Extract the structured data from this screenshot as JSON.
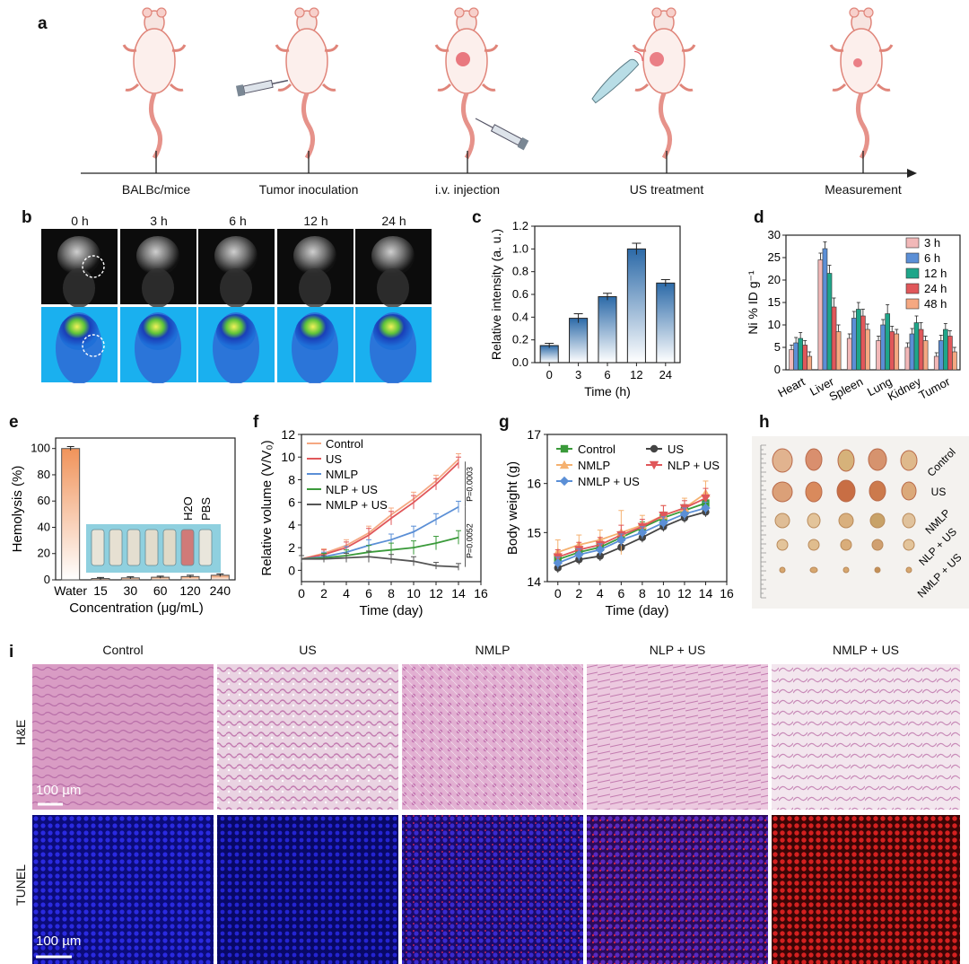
{
  "panel_labels": {
    "a": "a",
    "b": "b",
    "c": "c",
    "d": "d",
    "e": "e",
    "f": "f",
    "g": "g",
    "h": "h",
    "i": "i"
  },
  "timeline": {
    "steps": [
      "BALBc/mice",
      "Tumor inoculation",
      "i.v. injection",
      "US treatment",
      "Measurement"
    ]
  },
  "imaging": {
    "times": [
      "0 h",
      "3 h",
      "6 h",
      "12 h",
      "24 h"
    ]
  },
  "tumor_photo": {
    "labels": [
      "Control",
      "US",
      "NMLP",
      "NLP + US",
      "NMLP + US"
    ]
  },
  "histology": {
    "columns": [
      "Control",
      "US",
      "NMLP",
      "NLP + US",
      "NMLP + US"
    ],
    "rows": [
      "H&E",
      "TUNEL"
    ],
    "scale_bar": "100 µm"
  },
  "hemolysis_inset": {
    "h2o": "H2O",
    "pbs": "PBS"
  },
  "chart_data": [
    {
      "id": "c",
      "type": "bar",
      "categories": [
        "0",
        "3",
        "6",
        "12",
        "24"
      ],
      "values": [
        0.15,
        0.39,
        0.58,
        1.0,
        0.7
      ],
      "errors": [
        0.02,
        0.04,
        0.03,
        0.05,
        0.03
      ],
      "xlabel": "Time (h)",
      "ylabel": "Relative intensity (a. u.)",
      "ylim": [
        0,
        1.2
      ],
      "yticks": [
        "0.0",
        "0.2",
        "0.4",
        "0.6",
        "0.8",
        "1.0",
        "1.2"
      ]
    },
    {
      "id": "d",
      "type": "bar",
      "categories": [
        "Heart",
        "Liver",
        "Spleen",
        "Lung",
        "Kidney",
        "Tumor"
      ],
      "series": [
        {
          "name": "3 h",
          "color": "#f2b8b8",
          "values": [
            4.5,
            24.5,
            7.0,
            6.5,
            5.0,
            3.0
          ],
          "errors": [
            1.0,
            1.5,
            1.0,
            1.0,
            1.0,
            0.8
          ]
        },
        {
          "name": "6 h",
          "color": "#5b8fd6",
          "values": [
            6.0,
            27.0,
            11.5,
            10.0,
            8.0,
            6.5
          ],
          "errors": [
            1.2,
            1.5,
            1.5,
            1.2,
            1.2,
            1.2
          ]
        },
        {
          "name": "12 h",
          "color": "#1fa68a",
          "values": [
            7.0,
            21.5,
            13.5,
            12.5,
            10.5,
            9.0
          ],
          "errors": [
            1.3,
            1.8,
            1.5,
            2.0,
            1.5,
            1.3
          ]
        },
        {
          "name": "24 h",
          "color": "#e0575a",
          "values": [
            5.5,
            14.0,
            12.0,
            8.5,
            9.0,
            7.5
          ],
          "errors": [
            1.0,
            2.0,
            1.5,
            1.2,
            1.5,
            1.2
          ]
        },
        {
          "name": "48 h",
          "color": "#f5a882",
          "values": [
            3.0,
            8.5,
            9.0,
            8.0,
            6.5,
            4.0
          ],
          "errors": [
            1.0,
            1.5,
            1.2,
            1.0,
            1.0,
            1.0
          ]
        }
      ],
      "ylabel": "Ni % ID g⁻¹",
      "ylim": [
        0,
        30
      ],
      "yticks": [
        "0",
        "5",
        "10",
        "15",
        "20",
        "25",
        "30"
      ],
      "legend": "top-right"
    },
    {
      "id": "e",
      "type": "bar",
      "categories": [
        "Water",
        "15",
        "30",
        "60",
        "120",
        "240"
      ],
      "values": [
        100,
        1.0,
        1.5,
        2.0,
        2.5,
        3.5
      ],
      "errors": [
        1.5,
        0.8,
        0.8,
        0.8,
        1.0,
        1.0
      ],
      "xlabel": "Concentration (μg/mL)",
      "ylabel": "Hemolysis (%)",
      "ylim": [
        0,
        100
      ],
      "yticks": [
        "0",
        "20",
        "40",
        "60",
        "80",
        "100"
      ]
    },
    {
      "id": "f",
      "type": "line",
      "x": [
        0,
        2,
        4,
        6,
        8,
        10,
        12,
        14
      ],
      "series": [
        {
          "name": "Control",
          "color": "#f5a882",
          "values": [
            1.0,
            1.5,
            2.2,
            3.3,
            4.9,
            6.3,
            7.9,
            9.8
          ],
          "errors": [
            0.3,
            0.4,
            0.5,
            0.6,
            0.6,
            0.6,
            0.5,
            0.5
          ]
        },
        {
          "name": "US",
          "color": "#e0575a",
          "values": [
            1.0,
            1.4,
            2.0,
            3.1,
            4.6,
            6.0,
            7.6,
            9.5
          ],
          "errors": [
            0.3,
            0.4,
            0.5,
            0.6,
            0.6,
            0.6,
            0.5,
            0.5
          ]
        },
        {
          "name": "NMLP",
          "color": "#5b8fd6",
          "values": [
            1.0,
            1.2,
            1.6,
            2.2,
            2.7,
            3.4,
            4.5,
            5.6
          ],
          "errors": [
            0.3,
            0.4,
            0.5,
            0.5,
            0.5,
            0.5,
            0.5,
            0.5
          ]
        },
        {
          "name": "NLP + US",
          "color": "#3a9a3a",
          "values": [
            1.0,
            1.1,
            1.3,
            1.6,
            1.8,
            2.0,
            2.4,
            2.9
          ],
          "errors": [
            0.3,
            0.4,
            0.5,
            0.6,
            0.6,
            0.6,
            0.6,
            0.6
          ]
        },
        {
          "name": "NMLP + US",
          "color": "#555555",
          "values": [
            1.0,
            1.0,
            1.1,
            1.2,
            1.0,
            0.8,
            0.4,
            0.3
          ],
          "errors": [
            0.3,
            0.3,
            0.4,
            0.5,
            0.4,
            0.4,
            0.3,
            0.3
          ]
        }
      ],
      "xlabel": "Time (day)",
      "ylabel": "Relative volume (V/V₀)",
      "xlim": [
        0,
        16
      ],
      "ylim": [
        -1,
        12
      ],
      "xticks": [
        "0",
        "2",
        "4",
        "6",
        "8",
        "10",
        "12",
        "14",
        "16"
      ],
      "yticks": [
        "0",
        "2",
        "4",
        "6",
        "8",
        "10",
        "12"
      ],
      "annotations": [
        "P=0.0003",
        "P=0.0052"
      ],
      "legend": "top-left"
    },
    {
      "id": "g",
      "type": "line",
      "x": [
        0,
        2,
        4,
        6,
        8,
        10,
        12,
        14
      ],
      "series": [
        {
          "name": "Control",
          "color": "#3a9a3a",
          "marker": "square",
          "values": [
            14.45,
            14.6,
            14.7,
            14.9,
            15.1,
            15.3,
            15.45,
            15.6
          ],
          "errors": [
            0.12,
            0.12,
            0.12,
            0.12,
            0.12,
            0.12,
            0.12,
            0.12
          ]
        },
        {
          "name": "US",
          "color": "#444444",
          "marker": "circle",
          "values": [
            14.28,
            14.45,
            14.52,
            14.7,
            14.9,
            15.12,
            15.3,
            15.42
          ],
          "errors": [
            0.1,
            0.1,
            0.1,
            0.1,
            0.1,
            0.1,
            0.1,
            0.1
          ]
        },
        {
          "name": "NMLP",
          "color": "#f5b170",
          "marker": "triangle-up",
          "values": [
            14.6,
            14.75,
            14.85,
            15.0,
            15.15,
            15.35,
            15.5,
            15.8
          ],
          "errors": [
            0.25,
            0.2,
            0.2,
            0.45,
            0.2,
            0.2,
            0.2,
            0.25
          ]
        },
        {
          "name": "NLP + US",
          "color": "#e0575a",
          "marker": "triangle-down",
          "values": [
            14.5,
            14.65,
            14.75,
            14.95,
            15.12,
            15.35,
            15.5,
            15.7
          ],
          "errors": [
            0.15,
            0.15,
            0.15,
            0.2,
            0.15,
            0.2,
            0.15,
            0.2
          ]
        },
        {
          "name": "NMLP + US",
          "color": "#5b8fd6",
          "marker": "diamond",
          "values": [
            14.38,
            14.55,
            14.65,
            14.85,
            15.0,
            15.2,
            15.38,
            15.5
          ],
          "errors": [
            0.12,
            0.12,
            0.12,
            0.12,
            0.12,
            0.12,
            0.12,
            0.12
          ]
        }
      ],
      "xlabel": "Time (day)",
      "ylabel": "Body weight (g)",
      "xlim": [
        -1,
        16
      ],
      "ylim": [
        14,
        17
      ],
      "xticks": [
        "0",
        "2",
        "4",
        "6",
        "8",
        "10",
        "12",
        "14",
        "16"
      ],
      "yticks": [
        "14",
        "15",
        "16",
        "17"
      ],
      "legend": "top"
    }
  ]
}
